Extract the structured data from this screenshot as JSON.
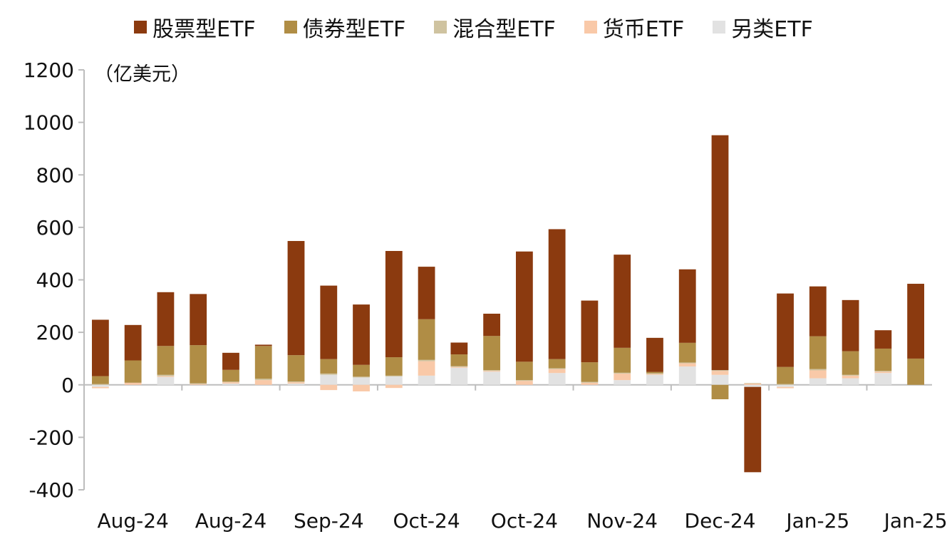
{
  "chart_data": {
    "type": "bar",
    "stacked": true,
    "unit_label": "（亿美元）",
    "legend_position": "top",
    "grid": false,
    "ylim": [
      -400,
      1200
    ],
    "yticks": [
      -400,
      -200,
      0,
      200,
      400,
      600,
      800,
      1000,
      1200
    ],
    "xtick_labels": [
      "Aug-24",
      "Aug-24",
      "Sep-24",
      "Oct-24",
      "Oct-24",
      "Nov-24",
      "Dec-24",
      "Jan-25",
      "Jan-25"
    ],
    "series": [
      {
        "name": "股票型ETF",
        "color": "#8B3A0F",
        "values": [
          215,
          135,
          205,
          195,
          65,
          5,
          435,
          280,
          230,
          405,
          200,
          45,
          85,
          420,
          495,
          235,
          355,
          130,
          280,
          895,
          -325,
          280,
          190,
          195,
          70,
          285
        ]
      },
      {
        "name": "债券型ETF",
        "color": "#B08D45",
        "values": [
          30,
          85,
          110,
          145,
          45,
          125,
          100,
          55,
          45,
          70,
          155,
          45,
          130,
          70,
          35,
          75,
          95,
          5,
          75,
          -55,
          0,
          65,
          125,
          90,
          85,
          100
        ]
      },
      {
        "name": "混合型ETF",
        "color": "#CFC3A0",
        "values": [
          3,
          0,
          5,
          3,
          2,
          5,
          3,
          5,
          3,
          3,
          5,
          3,
          3,
          3,
          3,
          3,
          3,
          3,
          3,
          3,
          2,
          3,
          5,
          3,
          3,
          0
        ]
      },
      {
        "name": "货币ETF",
        "color": "#F9C9A8",
        "values": [
          -5,
          8,
          3,
          3,
          5,
          18,
          5,
          -20,
          -25,
          -12,
          55,
          3,
          3,
          15,
          15,
          8,
          25,
          3,
          12,
          15,
          5,
          -5,
          30,
          10,
          5,
          0
        ]
      },
      {
        "name": "另类ETF",
        "color": "#E2E2E2",
        "values": [
          -8,
          0,
          30,
          0,
          5,
          0,
          5,
          38,
          28,
          32,
          35,
          65,
          50,
          0,
          45,
          0,
          18,
          38,
          70,
          38,
          -8,
          -8,
          25,
          25,
          45,
          0
        ]
      }
    ]
  }
}
